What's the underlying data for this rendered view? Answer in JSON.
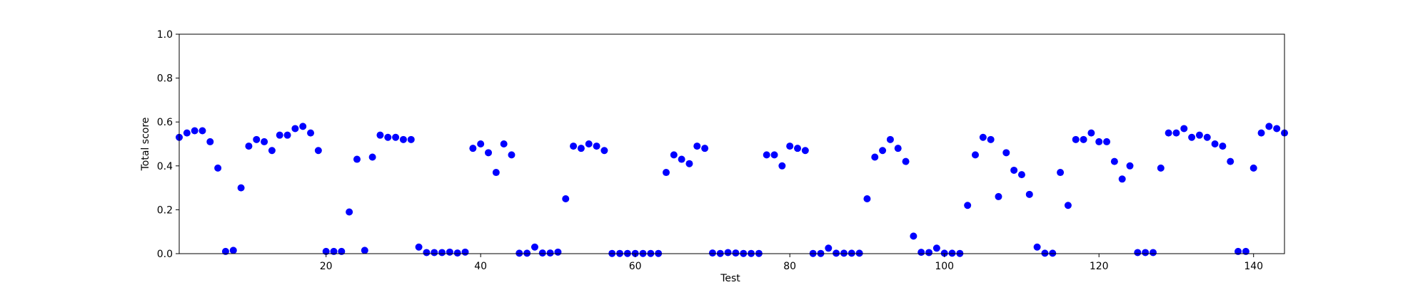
{
  "chart_data": {
    "type": "scatter",
    "xlabel": "Test",
    "ylabel": "Total score",
    "xlim": [
      1,
      144
    ],
    "ylim": [
      0.0,
      1.0
    ],
    "xticks": [
      20,
      40,
      60,
      80,
      100,
      120,
      140
    ],
    "yticks": [
      0.0,
      0.2,
      0.4,
      0.6,
      0.8,
      1.0
    ],
    "ytick_labels": [
      "0.0",
      "0.2",
      "0.4",
      "0.6",
      "0.8",
      "1.0"
    ],
    "grid": false,
    "marker_color": "#0000ff",
    "series": [
      {
        "x": [
          1,
          2,
          3,
          4,
          5,
          6,
          7,
          8,
          9,
          10,
          11,
          12,
          13,
          14,
          15,
          16,
          17,
          18,
          19,
          20,
          21,
          22,
          23,
          24,
          25,
          26,
          27,
          28,
          29,
          30,
          31,
          32,
          33,
          34,
          35,
          36,
          37,
          38,
          39,
          40,
          41,
          42,
          43,
          44,
          45,
          46,
          47,
          48,
          49,
          50,
          51,
          52,
          53,
          54,
          55,
          56,
          57,
          58,
          59,
          60,
          61,
          62,
          63,
          64,
          65,
          66,
          67,
          68,
          69,
          70,
          71,
          72,
          73,
          74,
          75,
          76,
          77,
          78,
          79,
          80,
          81,
          82,
          83,
          84,
          85,
          86,
          87,
          88,
          89,
          90,
          91,
          92,
          93,
          94,
          95,
          96,
          97,
          98,
          99,
          100,
          101,
          102,
          103,
          104,
          105,
          106,
          107,
          108,
          109,
          110,
          111,
          112,
          113,
          114,
          115,
          116,
          117,
          118,
          119,
          120,
          121,
          122,
          123,
          124,
          125,
          126,
          127,
          128,
          129,
          130,
          131,
          132,
          133,
          134,
          135,
          136,
          137,
          138,
          139,
          140,
          141,
          142,
          143,
          144
        ],
        "y": [
          0.53,
          0.55,
          0.56,
          0.56,
          0.51,
          0.39,
          0.01,
          0.015,
          0.3,
          0.49,
          0.52,
          0.51,
          0.47,
          0.54,
          0.54,
          0.57,
          0.58,
          0.55,
          0.47,
          0.01,
          0.01,
          0.01,
          0.19,
          0.43,
          0.015,
          0.44,
          0.54,
          0.53,
          0.53,
          0.52,
          0.52,
          0.03,
          0.005,
          0.005,
          0.005,
          0.007,
          0.003,
          0.007,
          0.48,
          0.5,
          0.46,
          0.37,
          0.5,
          0.45,
          0.002,
          0.002,
          0.03,
          0.003,
          0.003,
          0.007,
          0.25,
          0.49,
          0.48,
          0.5,
          0.49,
          0.47,
          0.001,
          0.001,
          0.001,
          0.001,
          0.001,
          0.001,
          0.001,
          0.37,
          0.45,
          0.43,
          0.41,
          0.49,
          0.48,
          0.003,
          0.001,
          0.005,
          0.003,
          0.001,
          0.001,
          0.001,
          0.45,
          0.45,
          0.4,
          0.49,
          0.48,
          0.47,
          0.001,
          0.001,
          0.025,
          0.002,
          0.002,
          0.002,
          0.002,
          0.25,
          0.44,
          0.47,
          0.52,
          0.48,
          0.42,
          0.08,
          0.006,
          0.005,
          0.025,
          0.002,
          0.002,
          0.001,
          0.22,
          0.45,
          0.53,
          0.52,
          0.26,
          0.46,
          0.38,
          0.36,
          0.27,
          0.03,
          0.002,
          0.002,
          0.37,
          0.22,
          0.52,
          0.52,
          0.55,
          0.51,
          0.51,
          0.42,
          0.34,
          0.4,
          0.005,
          0.005,
          0.005,
          0.39,
          0.55,
          0.55,
          0.57,
          0.53,
          0.54,
          0.53,
          0.5,
          0.49,
          0.42,
          0.01,
          0.01,
          0.39,
          0.55,
          0.58,
          0.57,
          0.55
        ]
      }
    ]
  }
}
